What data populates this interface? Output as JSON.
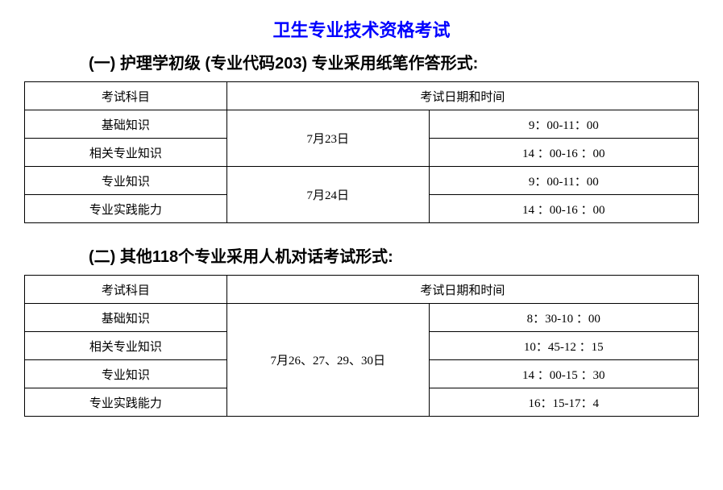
{
  "main_title": "卫生专业技术资格考试",
  "main_title_color": "#0000ff",
  "section1": {
    "title": "(一) 护理学初级 (专业代码203)  专业采用纸笔作答形式:",
    "table": {
      "header_subject": "考试科目",
      "header_datetime": "考试日期和时间",
      "rows": [
        {
          "subject": "基础知识",
          "date": "7月23日",
          "time": "9：00-11：00"
        },
        {
          "subject": "相关专业知识",
          "time": "14 ：00-16 ：00"
        },
        {
          "subject": "专业知识",
          "date": "7月24日",
          "time": "9：00-11：00"
        },
        {
          "subject": "专业实践能力",
          "time": "14 ：00-16 ：00"
        }
      ]
    }
  },
  "section2": {
    "title": "(二) 其他118个专业采用人机对话考试形式:",
    "table": {
      "header_subject": "考试科目",
      "header_datetime": "考试日期和时间",
      "rows": [
        {
          "subject": "基础知识",
          "date": "7月26、27、29、30日",
          "time": "8：30-10 ：00"
        },
        {
          "subject": "相关专业知识",
          "time": "10：45-12 ：15"
        },
        {
          "subject": "专业知识",
          "time": "14 ：00-15 ：30"
        },
        {
          "subject": "专业实践能力",
          "time": "16：15-17：4"
        }
      ]
    }
  }
}
